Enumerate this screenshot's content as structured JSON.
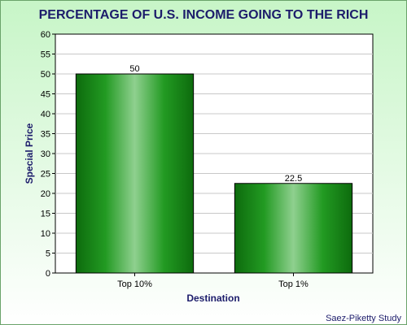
{
  "chart_data": {
    "type": "bar",
    "title": "PERCENTAGE OF U.S. INCOME GOING TO THE RICH",
    "xlabel": "Destination",
    "ylabel": "Special Price",
    "categories": [
      "Top 10%",
      "Top 1%"
    ],
    "values": [
      50,
      22.5
    ],
    "value_labels": [
      "50",
      "22.5"
    ],
    "ylim": [
      0,
      60
    ],
    "yticks": [
      0,
      5,
      10,
      15,
      20,
      25,
      30,
      35,
      40,
      45,
      50,
      55,
      60
    ],
    "grid": true,
    "legend": "none",
    "source": "Saez-Piketty Study"
  },
  "colors": {
    "bar_dark": "#0d6b0d",
    "bar_mid": "#229a22",
    "bar_light": "#8fd08f",
    "title": "#1c1c6b",
    "axis_label": "#1c1c6b",
    "background_top": "#c7f5c7",
    "background_bottom": "#ffffff",
    "plot_background": "#ffffff",
    "grid": "#c8c8c8",
    "frame_border": "#6aa36a"
  }
}
